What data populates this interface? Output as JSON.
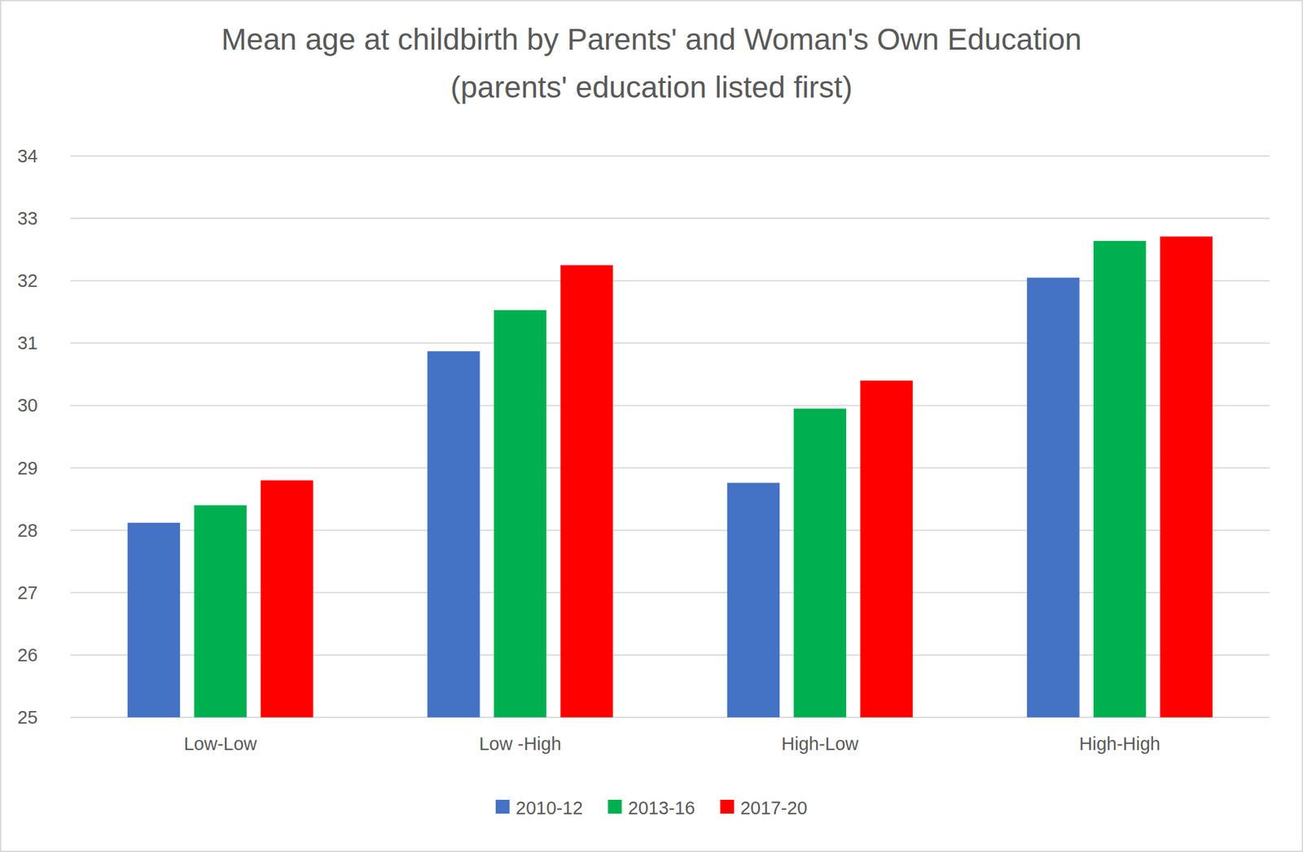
{
  "chart_data": {
    "type": "bar",
    "title": "Mean age at childbirth by Parents' and Woman's Own Education (parents' education listed first)",
    "categories": [
      "Low-Low",
      "Low -High",
      "High-Low",
      "High-High"
    ],
    "series": [
      {
        "name": "2010-12",
        "color": "#4472c4",
        "values": [
          28.12,
          30.87,
          28.76,
          32.05
        ]
      },
      {
        "name": "2013-16",
        "color": "#00b050",
        "values": [
          28.4,
          31.53,
          29.95,
          32.64
        ]
      },
      {
        "name": "2017-20",
        "color": "#ff0000",
        "values": [
          28.8,
          32.25,
          30.4,
          32.71
        ]
      }
    ],
    "ylim": [
      25,
      34
    ],
    "yticks": [
      25,
      26,
      27,
      28,
      29,
      30,
      31,
      32,
      33,
      34
    ],
    "grid": true,
    "legend": "bottom"
  }
}
